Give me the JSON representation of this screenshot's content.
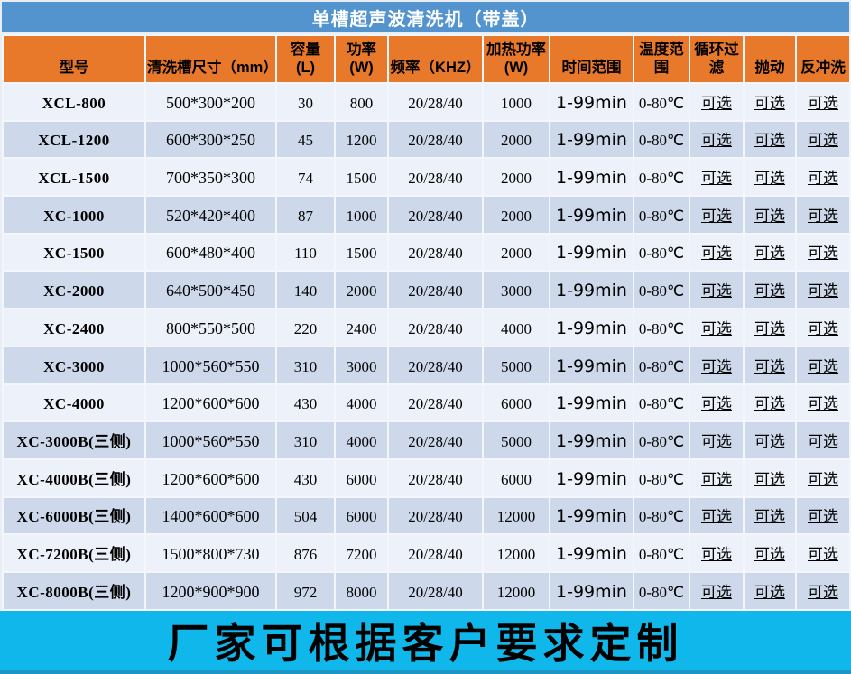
{
  "title": "单槽超声波清洗机（带盖）",
  "footer_banner": "厂家可根据客户要求定制",
  "colors": {
    "title_bar": "#5494CE",
    "header_orange": "#E8792B",
    "row_light": "#EDF1F9",
    "row_dark": "#CDD9EB",
    "footer_cyan": "#10B7EB",
    "grid_line": "#F3F6FB"
  },
  "table": {
    "columns": [
      {
        "key": "model",
        "label": "型号"
      },
      {
        "key": "size",
        "label": "清洗槽尺寸（mm）"
      },
      {
        "key": "capacity",
        "label": "容量\n(L)"
      },
      {
        "key": "power",
        "label": "功率\n(W)"
      },
      {
        "key": "frequency",
        "label": "频率（KHZ）"
      },
      {
        "key": "heating_power",
        "label": "加热功率\n(W)"
      },
      {
        "key": "time_range",
        "label": "时间范围"
      },
      {
        "key": "temp_range",
        "label": "温度范围"
      },
      {
        "key": "filter",
        "label": "循环过滤"
      },
      {
        "key": "agitation",
        "label": "抛动"
      },
      {
        "key": "backwash",
        "label": "反冲洗"
      }
    ],
    "rows": [
      {
        "model": "XCL-800",
        "size": "500*300*200",
        "capacity": "30",
        "power": "800",
        "frequency": "20/28/40",
        "heating_power": "1000",
        "time_range": "1-99min",
        "temp_range": "0-80℃",
        "filter": "可选",
        "agitation": "可选",
        "backwash": "可选"
      },
      {
        "model": "XCL-1200",
        "size": "600*300*250",
        "capacity": "45",
        "power": "1200",
        "frequency": "20/28/40",
        "heating_power": "2000",
        "time_range": "1-99min",
        "temp_range": "0-80℃",
        "filter": "可选",
        "agitation": "可选",
        "backwash": "可选"
      },
      {
        "model": "XCL-1500",
        "size": "700*350*300",
        "capacity": "74",
        "power": "1500",
        "frequency": "20/28/40",
        "heating_power": "2000",
        "time_range": "1-99min",
        "temp_range": "0-80℃",
        "filter": "可选",
        "agitation": "可选",
        "backwash": "可选"
      },
      {
        "model": "XC-1000",
        "size": "520*420*400",
        "capacity": "87",
        "power": "1000",
        "frequency": "20/28/40",
        "heating_power": "2000",
        "time_range": "1-99min",
        "temp_range": "0-80℃",
        "filter": "可选",
        "agitation": "可选",
        "backwash": "可选"
      },
      {
        "model": "XC-1500",
        "size": "600*480*400",
        "capacity": "110",
        "power": "1500",
        "frequency": "20/28/40",
        "heating_power": "2000",
        "time_range": "1-99min",
        "temp_range": "0-80℃",
        "filter": "可选",
        "agitation": "可选",
        "backwash": "可选"
      },
      {
        "model": "XC-2000",
        "size": "640*500*450",
        "capacity": "140",
        "power": "2000",
        "frequency": "20/28/40",
        "heating_power": "3000",
        "time_range": "1-99min",
        "temp_range": "0-80℃",
        "filter": "可选",
        "agitation": "可选",
        "backwash": "可选"
      },
      {
        "model": "XC-2400",
        "size": "800*550*500",
        "capacity": "220",
        "power": "2400",
        "frequency": "20/28/40",
        "heating_power": "4000",
        "time_range": "1-99min",
        "temp_range": "0-80℃",
        "filter": "可选",
        "agitation": "可选",
        "backwash": "可选"
      },
      {
        "model": "XC-3000",
        "size": "1000*560*550",
        "capacity": "310",
        "power": "3000",
        "frequency": "20/28/40",
        "heating_power": "5000",
        "time_range": "1-99min",
        "temp_range": "0-80℃",
        "filter": "可选",
        "agitation": "可选",
        "backwash": "可选"
      },
      {
        "model": "XC-4000",
        "size": "1200*600*600",
        "capacity": "430",
        "power": "4000",
        "frequency": "20/28/40",
        "heating_power": "6000",
        "time_range": "1-99min",
        "temp_range": "0-80℃",
        "filter": "可选",
        "agitation": "可选",
        "backwash": "可选"
      },
      {
        "model": "XC-3000B(三侧)",
        "size": "1000*560*550",
        "capacity": "310",
        "power": "4000",
        "frequency": "20/28/40",
        "heating_power": "5000",
        "time_range": "1-99min",
        "temp_range": "0-80℃",
        "filter": "可选",
        "agitation": "可选",
        "backwash": "可选"
      },
      {
        "model": "XC-4000B(三侧)",
        "size": "1200*600*600",
        "capacity": "430",
        "power": "6000",
        "frequency": "20/28/40",
        "heating_power": "6000",
        "time_range": "1-99min",
        "temp_range": "0-80℃",
        "filter": "可选",
        "agitation": "可选",
        "backwash": "可选"
      },
      {
        "model": "XC-6000B(三侧)",
        "size": "1400*600*600",
        "capacity": "504",
        "power": "6000",
        "frequency": "20/28/40",
        "heating_power": "12000",
        "time_range": "1-99min",
        "temp_range": "0-80℃",
        "filter": "可选",
        "agitation": "可选",
        "backwash": "可选"
      },
      {
        "model": "XC-7200B(三侧)",
        "size": "1500*800*730",
        "capacity": "876",
        "power": "7200",
        "frequency": "20/28/40",
        "heating_power": "12000",
        "time_range": "1-99min",
        "temp_range": "0-80℃",
        "filter": "可选",
        "agitation": "可选",
        "backwash": "可选"
      },
      {
        "model": "XC-8000B(三侧)",
        "size": "1200*900*900",
        "capacity": "972",
        "power": "8000",
        "frequency": "20/28/40",
        "heating_power": "12000",
        "time_range": "1-99min",
        "temp_range": "0-80℃",
        "filter": "可选",
        "agitation": "可选",
        "backwash": "可选"
      }
    ]
  }
}
